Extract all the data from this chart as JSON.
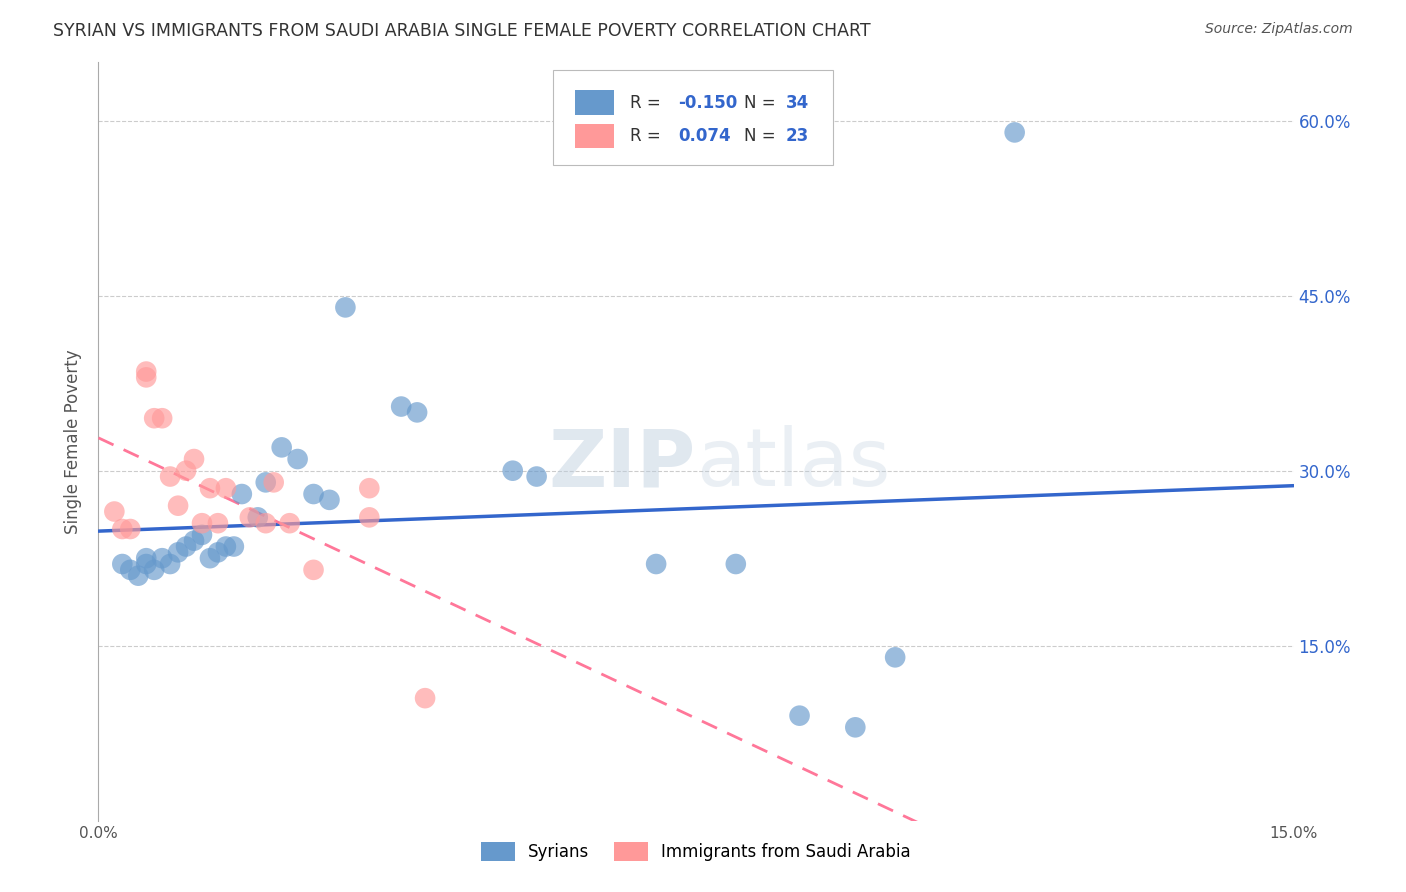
{
  "title": "SYRIAN VS IMMIGRANTS FROM SAUDI ARABIA SINGLE FEMALE POVERTY CORRELATION CHART",
  "source": "Source: ZipAtlas.com",
  "ylabel": "Single Female Poverty",
  "watermark": "ZIPatlas",
  "legend_label1": "Syrians",
  "legend_label2": "Immigrants from Saudi Arabia",
  "R1": "-0.150",
  "N1": "34",
  "R2": "0.074",
  "N2": "23",
  "syrians_x": [
    0.003,
    0.004,
    0.005,
    0.006,
    0.006,
    0.007,
    0.008,
    0.009,
    0.01,
    0.011,
    0.012,
    0.013,
    0.014,
    0.015,
    0.016,
    0.017,
    0.018,
    0.02,
    0.021,
    0.023,
    0.025,
    0.027,
    0.029,
    0.031,
    0.038,
    0.04,
    0.052,
    0.055,
    0.07,
    0.08,
    0.088,
    0.095,
    0.1,
    0.115
  ],
  "syrians_y": [
    0.22,
    0.215,
    0.21,
    0.22,
    0.225,
    0.215,
    0.225,
    0.22,
    0.23,
    0.235,
    0.24,
    0.245,
    0.225,
    0.23,
    0.235,
    0.235,
    0.28,
    0.26,
    0.29,
    0.32,
    0.31,
    0.28,
    0.275,
    0.44,
    0.355,
    0.35,
    0.3,
    0.295,
    0.22,
    0.22,
    0.09,
    0.08,
    0.14,
    0.59
  ],
  "saudi_x": [
    0.002,
    0.003,
    0.004,
    0.006,
    0.006,
    0.007,
    0.008,
    0.009,
    0.01,
    0.011,
    0.012,
    0.013,
    0.014,
    0.015,
    0.016,
    0.019,
    0.021,
    0.022,
    0.024,
    0.027,
    0.034,
    0.034,
    0.041
  ],
  "saudi_y": [
    0.265,
    0.25,
    0.25,
    0.385,
    0.38,
    0.345,
    0.345,
    0.295,
    0.27,
    0.3,
    0.31,
    0.255,
    0.285,
    0.255,
    0.285,
    0.26,
    0.255,
    0.29,
    0.255,
    0.215,
    0.26,
    0.285,
    0.105
  ],
  "color_syrians": "#6699CC",
  "color_saudi": "#FF9999",
  "color_line_syrians": "#3366CC",
  "color_line_saudi": "#FF7799",
  "xlim": [
    0.0,
    0.15
  ],
  "ylim": [
    0.0,
    0.65
  ],
  "yticks": [
    0.15,
    0.3,
    0.45,
    0.6
  ],
  "ytick_labels": [
    "15.0%",
    "30.0%",
    "45.0%",
    "60.0%"
  ],
  "background_color": "#FFFFFF",
  "grid_color": "#CCCCCC"
}
